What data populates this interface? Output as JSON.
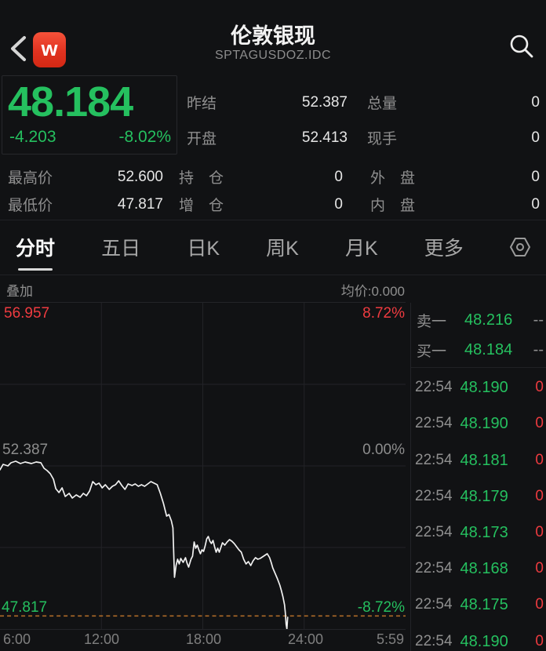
{
  "header": {
    "title": "伦敦银现",
    "subtitle": "SPTAGUSDOZ.IDC",
    "logo_text": "w"
  },
  "quote": {
    "last_price": "48.184",
    "change": "-4.203",
    "change_pct": "-8.02%",
    "top_fields": [
      {
        "label": "昨结",
        "value": "52.387"
      },
      {
        "label": "开盘",
        "value": "52.413"
      },
      {
        "label": "总量",
        "value": "0"
      },
      {
        "label": "现手",
        "value": "0"
      }
    ],
    "bottom_fields": [
      {
        "label": "最高价",
        "value": "52.600"
      },
      {
        "label": "最低价",
        "value": "47.817"
      },
      {
        "label": "持　仓",
        "value": "0"
      },
      {
        "label": "增　仓",
        "value": "0"
      },
      {
        "label": "外　盘",
        "value": "0"
      },
      {
        "label": "内　盘",
        "value": "0"
      }
    ]
  },
  "tabs": {
    "items": [
      "分时",
      "五日",
      "日K",
      "周K",
      "月K",
      "更多"
    ],
    "active": "分时",
    "settings_icon": "hexagon-nut-icon"
  },
  "chart_header": {
    "overlay_label": "叠加",
    "avg_label": "均价:0.000"
  },
  "chart_data": {
    "type": "line",
    "title": "伦敦银现 分时走势",
    "x_axis_labels": [
      "6:00",
      "12:00",
      "18:00",
      "24:00",
      "5:59"
    ],
    "y_labels": {
      "top_left": "56.957",
      "top_right": "8.72%",
      "mid_left": "52.387",
      "mid_right": "0.00%",
      "bot_left": "47.817",
      "bot_right": "-8.72%"
    },
    "ylim": [
      47.817,
      56.957
    ],
    "prev_settle": 52.387,
    "last_price_line": 48.184,
    "grid": "quarters",
    "line_color": "#f0f0f0",
    "last_price_line_color": "#ad6a28",
    "series": [
      {
        "name": "price",
        "points": [
          [
            0.0,
            52.277
          ],
          [
            0.0078,
            52.431
          ],
          [
            0.0194,
            52.387
          ],
          [
            0.0271,
            52.475
          ],
          [
            0.0388,
            52.519
          ],
          [
            0.0504,
            52.453
          ],
          [
            0.062,
            52.497
          ],
          [
            0.0775,
            52.453
          ],
          [
            0.0891,
            52.497
          ],
          [
            0.1008,
            52.475
          ],
          [
            0.1085,
            52.321
          ],
          [
            0.1163,
            52.255
          ],
          [
            0.124,
            52.167
          ],
          [
            0.1318,
            52.013
          ],
          [
            0.1376,
            51.75
          ],
          [
            0.1453,
            51.64
          ],
          [
            0.1531,
            51.772
          ],
          [
            0.1609,
            51.53
          ],
          [
            0.1705,
            51.618
          ],
          [
            0.1783,
            51.486
          ],
          [
            0.188,
            51.574
          ],
          [
            0.1977,
            51.508
          ],
          [
            0.2054,
            51.618
          ],
          [
            0.2132,
            51.552
          ],
          [
            0.2209,
            51.684
          ],
          [
            0.2287,
            51.947
          ],
          [
            0.2364,
            51.859
          ],
          [
            0.2442,
            51.903
          ],
          [
            0.2519,
            51.772
          ],
          [
            0.2597,
            51.859
          ],
          [
            0.2694,
            51.728
          ],
          [
            0.2771,
            51.815
          ],
          [
            0.2849,
            51.859
          ],
          [
            0.2926,
            51.969
          ],
          [
            0.3004,
            51.837
          ],
          [
            0.3081,
            51.728
          ],
          [
            0.3159,
            51.881
          ],
          [
            0.3256,
            51.837
          ],
          [
            0.3333,
            51.881
          ],
          [
            0.3411,
            51.815
          ],
          [
            0.3488,
            51.859
          ],
          [
            0.3566,
            51.815
          ],
          [
            0.3643,
            51.881
          ],
          [
            0.3721,
            51.947
          ],
          [
            0.3798,
            51.903
          ],
          [
            0.3876,
            51.859
          ],
          [
            0.3953,
            51.618
          ],
          [
            0.4031,
            51.332
          ],
          [
            0.4109,
            50.981
          ],
          [
            0.4167,
            51.025
          ],
          [
            0.4225,
            50.849
          ],
          [
            0.4264,
            50.651
          ],
          [
            0.4302,
            49.267
          ],
          [
            0.4341,
            49.596
          ],
          [
            0.438,
            49.772
          ],
          [
            0.4419,
            49.64
          ],
          [
            0.4457,
            49.794
          ],
          [
            0.4515,
            49.684
          ],
          [
            0.4574,
            49.816
          ],
          [
            0.4612,
            49.662
          ],
          [
            0.4651,
            49.552
          ],
          [
            0.4709,
            49.772
          ],
          [
            0.4748,
            49.86
          ],
          [
            0.4787,
            50.256
          ],
          [
            0.4826,
            50.08
          ],
          [
            0.4864,
            50.168
          ],
          [
            0.4903,
            50.036
          ],
          [
            0.4942,
            49.926
          ],
          [
            0.4981,
            50.036
          ],
          [
            0.5019,
            49.992
          ],
          [
            0.5058,
            50.146
          ],
          [
            0.5097,
            50.344
          ],
          [
            0.5136,
            50.41
          ],
          [
            0.5174,
            50.278
          ],
          [
            0.5213,
            50.212
          ],
          [
            0.5252,
            50.3
          ],
          [
            0.5291,
            50.124
          ],
          [
            0.5329,
            49.97
          ],
          [
            0.5368,
            50.08
          ],
          [
            0.5407,
            49.97
          ],
          [
            0.5484,
            50.234
          ],
          [
            0.5543,
            50.168
          ],
          [
            0.5601,
            50.256
          ],
          [
            0.5659,
            50.322
          ],
          [
            0.5717,
            50.278
          ],
          [
            0.5775,
            50.212
          ],
          [
            0.5833,
            50.124
          ],
          [
            0.5891,
            50.036
          ],
          [
            0.595,
            49.97
          ],
          [
            0.6008,
            49.772
          ],
          [
            0.6066,
            49.64
          ],
          [
            0.6124,
            49.706
          ],
          [
            0.6182,
            49.596
          ],
          [
            0.624,
            49.728
          ],
          [
            0.6298,
            49.816
          ],
          [
            0.6357,
            49.772
          ],
          [
            0.6415,
            49.794
          ],
          [
            0.6473,
            49.838
          ],
          [
            0.6531,
            49.882
          ],
          [
            0.6589,
            49.926
          ],
          [
            0.6647,
            49.816
          ],
          [
            0.6686,
            49.684
          ],
          [
            0.6725,
            49.53
          ],
          [
            0.6783,
            49.376
          ],
          [
            0.6841,
            49.223
          ],
          [
            0.6899,
            49.047
          ],
          [
            0.6938,
            48.893
          ],
          [
            0.6977,
            48.717
          ],
          [
            0.7016,
            48.497
          ],
          [
            0.7035,
            48.277
          ],
          [
            0.7054,
            47.948
          ],
          [
            0.7074,
            47.817
          ],
          [
            0.7093,
            48.147
          ]
        ]
      }
    ]
  },
  "order_book": {
    "ask_label": "卖一",
    "ask_price": "48.216",
    "ask_vol": "--",
    "bid_label": "买一",
    "bid_price": "48.184",
    "bid_vol": "--"
  },
  "trades": [
    {
      "time": "22:54",
      "price": "48.190",
      "vol": "0"
    },
    {
      "time": "22:54",
      "price": "48.190",
      "vol": "0"
    },
    {
      "time": "22:54",
      "price": "48.181",
      "vol": "0"
    },
    {
      "time": "22:54",
      "price": "48.179",
      "vol": "0"
    },
    {
      "time": "22:54",
      "price": "48.173",
      "vol": "0"
    },
    {
      "time": "22:54",
      "price": "48.168",
      "vol": "0"
    },
    {
      "time": "22:54",
      "price": "48.175",
      "vol": "0"
    },
    {
      "time": "22:54",
      "price": "48.190",
      "vol": "0"
    }
  ],
  "colors": {
    "up_red": "#ef3b40",
    "down_green": "#25c05f",
    "avg_line_orange": "#ad6a28",
    "background": "#111214",
    "label_gray": "#8f8f8f"
  }
}
